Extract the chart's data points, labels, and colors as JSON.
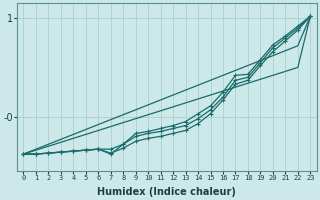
{
  "xlabel": "Humidex (Indice chaleur)",
  "bg_color": "#cce8e8",
  "grid_color": "#aacfcf",
  "line_color": "#1a6b6b",
  "x_values": [
    0,
    1,
    2,
    3,
    4,
    5,
    6,
    7,
    8,
    9,
    10,
    11,
    12,
    13,
    14,
    15,
    16,
    17,
    18,
    19,
    20,
    21,
    22,
    23
  ],
  "line_straight1": [
    -0.38,
    -0.33,
    -0.28,
    -0.23,
    -0.18,
    -0.13,
    -0.08,
    -0.03,
    0.02,
    0.07,
    0.12,
    0.17,
    0.22,
    0.27,
    0.32,
    0.37,
    0.42,
    0.47,
    0.52,
    0.57,
    0.62,
    0.67,
    0.72,
    1.02
  ],
  "line_straight2": [
    -0.38,
    -0.34,
    -0.3,
    -0.26,
    -0.22,
    -0.18,
    -0.14,
    -0.1,
    -0.06,
    -0.02,
    0.02,
    0.06,
    0.1,
    0.14,
    0.18,
    0.22,
    0.26,
    0.3,
    0.34,
    0.38,
    0.42,
    0.46,
    0.5,
    1.02
  ],
  "line_curve1": [
    -0.38,
    -0.38,
    -0.37,
    -0.36,
    -0.35,
    -0.34,
    -0.33,
    -0.37,
    -0.32,
    -0.25,
    -0.22,
    -0.2,
    -0.17,
    -0.14,
    -0.07,
    0.03,
    0.17,
    0.33,
    0.37,
    0.52,
    0.66,
    0.77,
    0.88,
    1.02
  ],
  "line_curve2": [
    -0.38,
    -0.38,
    -0.37,
    -0.36,
    -0.35,
    -0.34,
    -0.33,
    -0.33,
    -0.28,
    -0.2,
    -0.17,
    -0.15,
    -0.12,
    -0.09,
    -0.02,
    0.07,
    0.2,
    0.37,
    0.4,
    0.55,
    0.7,
    0.8,
    0.9,
    1.02
  ],
  "line_curve3": [
    -0.38,
    -0.38,
    -0.37,
    -0.36,
    -0.35,
    -0.34,
    -0.33,
    -0.38,
    -0.28,
    -0.17,
    -0.15,
    -0.12,
    -0.09,
    -0.05,
    0.03,
    0.11,
    0.25,
    0.42,
    0.43,
    0.58,
    0.73,
    0.82,
    0.92,
    1.02
  ],
  "ylim": [
    -0.55,
    1.15
  ],
  "xlim": [
    -0.5,
    23.5
  ],
  "ytick_vals": [
    0.0,
    1.0
  ],
  "ytick_labels": [
    "-0",
    "1"
  ]
}
